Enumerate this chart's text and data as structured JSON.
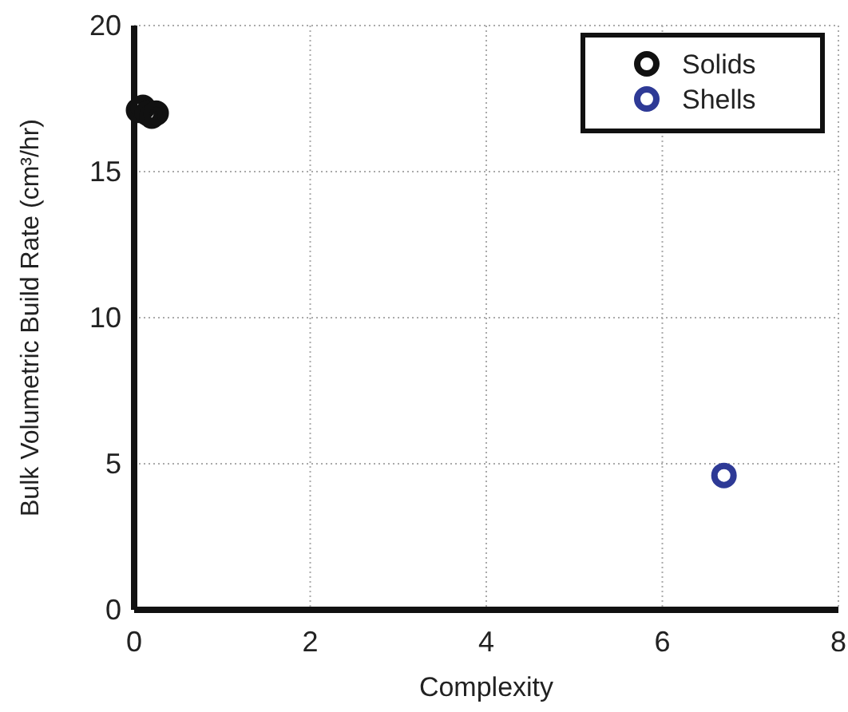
{
  "chart_data": {
    "type": "scatter",
    "xlabel": "Complexity",
    "ylabel": "Bulk Volumetric Build Rate (cm³/hr)",
    "xlim": [
      0,
      8
    ],
    "xticks": [
      0,
      2,
      4,
      6,
      8
    ],
    "ylim": [
      0,
      20
    ],
    "yticks": [
      0,
      5,
      10,
      15,
      20
    ],
    "grid": true,
    "legend": "top right",
    "marker": "circle",
    "series": [
      {
        "name": "Solids",
        "color": "#111111",
        "x": [
          0.05,
          0.1,
          0.15,
          0.2,
          0.25
        ],
        "values": [
          17.1,
          17.2,
          17.0,
          16.9,
          17.0
        ]
      },
      {
        "name": "Shells",
        "color": "#2e3a96",
        "x": [
          6.7
        ],
        "values": [
          4.6
        ]
      }
    ]
  }
}
